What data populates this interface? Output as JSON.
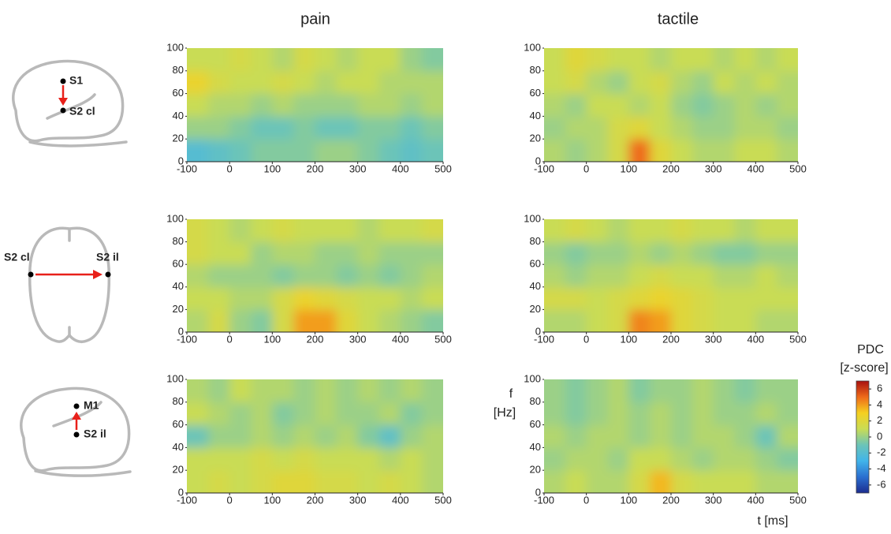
{
  "column_titles": [
    "pain",
    "tactile"
  ],
  "diagrams": [
    {
      "from": "S1",
      "to": "S2 cl"
    },
    {
      "from": "S2 cl",
      "to": "S2 il"
    },
    {
      "from": "S2 il",
      "to": "M1"
    }
  ],
  "axis_labels": {
    "y_lines": [
      "f",
      "[Hz]"
    ],
    "x": "t [ms]"
  },
  "colorbar": {
    "title": "PDC",
    "subtitle": "[z-score]",
    "lim": [
      -7,
      7
    ],
    "ticks": [
      6,
      4,
      2,
      0,
      -2,
      -4,
      -6
    ],
    "colors": [
      "#1c2c8f",
      "#2b6fd0",
      "#41b4ea",
      "#6cc4b8",
      "#c9dc55",
      "#f5d020",
      "#ee6a1a",
      "#a8100e"
    ]
  },
  "chart_data": [
    {
      "type": "heatmap",
      "xlim": [
        -100,
        500
      ],
      "xticks": [
        -100,
        0,
        100,
        200,
        300,
        400,
        500
      ],
      "ylim": [
        0,
        100
      ],
      "yticks": [
        0,
        20,
        40,
        60,
        80,
        100
      ],
      "x_bins": [
        -100,
        -50,
        0,
        50,
        100,
        150,
        200,
        250,
        300,
        350,
        400,
        450,
        500
      ],
      "y_bins": [
        0,
        20,
        40,
        60,
        80,
        100
      ],
      "values": [
        [
          -2,
          -1.5,
          -1,
          -0.5,
          -0.5,
          -0.5,
          0,
          0,
          -0.5,
          -1,
          -1.5,
          -1
        ],
        [
          0,
          0,
          -0.5,
          -1,
          -1,
          -0.5,
          -1,
          -1,
          -0.5,
          -0.5,
          -1,
          -0.5
        ],
        [
          1,
          0.5,
          0.5,
          0,
          0.5,
          0,
          0,
          0,
          0.5,
          0.5,
          0,
          0.5
        ],
        [
          2.5,
          1.5,
          1,
          1,
          1.5,
          1,
          0.5,
          1,
          1,
          0.5,
          0.5,
          0.5
        ],
        [
          1,
          1,
          1.5,
          1,
          0.5,
          1.5,
          1,
          0.5,
          1,
          1,
          0,
          -0.5
        ]
      ]
    },
    {
      "type": "heatmap",
      "xlim": [
        -100,
        500
      ],
      "xticks": [
        -100,
        0,
        100,
        200,
        300,
        400,
        500
      ],
      "ylim": [
        0,
        100
      ],
      "yticks": [
        0,
        20,
        40,
        60,
        80,
        100
      ],
      "x_bins": [
        -100,
        -50,
        0,
        50,
        100,
        150,
        200,
        250,
        300,
        350,
        400,
        450,
        500
      ],
      "y_bins": [
        0,
        20,
        40,
        60,
        80,
        100
      ],
      "values": [
        [
          0.5,
          0,
          0.5,
          1.5,
          5,
          2,
          1,
          0.5,
          0.5,
          1,
          1,
          0.5
        ],
        [
          0,
          0.5,
          0.5,
          1.5,
          2,
          1,
          0.5,
          0,
          0,
          0.5,
          0.5,
          0
        ],
        [
          0.5,
          0,
          1,
          1,
          0.5,
          1,
          0,
          -0.5,
          0,
          0.5,
          0,
          0.5
        ],
        [
          1,
          1.5,
          0.5,
          0,
          1,
          1.5,
          0.5,
          0,
          1,
          0.5,
          1,
          0.5
        ],
        [
          1,
          2,
          1.5,
          1,
          1,
          0.5,
          1,
          1,
          0.5,
          1,
          0.5,
          1
        ]
      ]
    },
    {
      "type": "heatmap",
      "xlim": [
        -100,
        500
      ],
      "xticks": [
        -100,
        0,
        100,
        200,
        300,
        400,
        500
      ],
      "ylim": [
        0,
        100
      ],
      "yticks": [
        0,
        20,
        40,
        60,
        80,
        100
      ],
      "x_bins": [
        -100,
        -50,
        0,
        50,
        100,
        150,
        200,
        250,
        300,
        350,
        400,
        450,
        500
      ],
      "y_bins": [
        0,
        20,
        40,
        60,
        80,
        100
      ],
      "values": [
        [
          0.5,
          1.5,
          0,
          -0.5,
          1.5,
          4,
          4,
          2,
          1,
          0.5,
          0,
          -0.5
        ],
        [
          1,
          1,
          0.5,
          0.5,
          1.5,
          2.5,
          2,
          1.5,
          1,
          1,
          0.5,
          1
        ],
        [
          0.5,
          0,
          0,
          0,
          -0.5,
          0,
          0,
          -0.5,
          0,
          -0.5,
          0,
          0.5
        ],
        [
          1.5,
          1,
          1,
          0,
          0.5,
          0.5,
          0,
          0,
          0.5,
          0,
          0,
          0
        ],
        [
          1.5,
          1,
          0.5,
          1,
          1.5,
          1,
          1,
          1,
          0.5,
          1,
          1,
          1.5
        ]
      ]
    },
    {
      "type": "heatmap",
      "xlim": [
        -100,
        500
      ],
      "xticks": [
        -100,
        0,
        100,
        200,
        300,
        400,
        500
      ],
      "ylim": [
        0,
        100
      ],
      "yticks": [
        0,
        20,
        40,
        60,
        80,
        100
      ],
      "x_bins": [
        -100,
        -50,
        0,
        50,
        100,
        150,
        200,
        250,
        300,
        350,
        400,
        450,
        500
      ],
      "y_bins": [
        0,
        20,
        40,
        60,
        80,
        100
      ],
      "values": [
        [
          0.5,
          0.5,
          1,
          1.5,
          4.5,
          4,
          2,
          1.5,
          1,
          1,
          0.5,
          0.5
        ],
        [
          1.5,
          1.5,
          1,
          1.5,
          2,
          2.5,
          2,
          1.5,
          1,
          1,
          1,
          1
        ],
        [
          0.5,
          0,
          0.5,
          0.5,
          1,
          1.5,
          1,
          1,
          0.5,
          0.5,
          1,
          0.5
        ],
        [
          0,
          -0.5,
          0,
          0,
          0.5,
          0,
          0.5,
          0,
          -0.5,
          -0.5,
          0,
          0
        ],
        [
          1,
          1.5,
          1,
          0.5,
          1,
          1,
          1.5,
          1,
          1,
          0.5,
          1,
          1
        ]
      ]
    },
    {
      "type": "heatmap",
      "xlim": [
        -100,
        500
      ],
      "xticks": [
        -100,
        0,
        100,
        200,
        300,
        400,
        500
      ],
      "ylim": [
        0,
        100
      ],
      "yticks": [
        0,
        20,
        40,
        60,
        80,
        100
      ],
      "x_bins": [
        -100,
        -50,
        0,
        50,
        100,
        150,
        200,
        250,
        300,
        350,
        400,
        450,
        500
      ],
      "y_bins": [
        0,
        20,
        40,
        60,
        80,
        100
      ],
      "values": [
        [
          1,
          1.5,
          1,
          1.5,
          2,
          2,
          1.5,
          1.5,
          1,
          1.5,
          1,
          0.5
        ],
        [
          1,
          1,
          1,
          1.5,
          1,
          1.5,
          1,
          1,
          1,
          0.5,
          1,
          0.5
        ],
        [
          -1,
          0,
          0,
          0.5,
          0,
          0.5,
          0,
          0.5,
          -0.5,
          -1.5,
          0,
          0.5
        ],
        [
          1,
          0.5,
          0,
          0.5,
          -0.5,
          0,
          0.5,
          0,
          0,
          0.5,
          -0.5,
          0
        ],
        [
          0.5,
          0,
          1,
          0.5,
          0.5,
          0,
          0.5,
          0,
          0.5,
          0,
          0.5,
          0
        ]
      ]
    },
    {
      "type": "heatmap",
      "xlim": [
        -100,
        500
      ],
      "xticks": [
        -100,
        0,
        100,
        200,
        300,
        400,
        500
      ],
      "ylim": [
        0,
        100
      ],
      "yticks": [
        0,
        20,
        40,
        60,
        80,
        100
      ],
      "x_bins": [
        -100,
        -50,
        0,
        50,
        100,
        150,
        200,
        250,
        300,
        350,
        400,
        450,
        500
      ],
      "y_bins": [
        0,
        20,
        40,
        60,
        80,
        100
      ],
      "values": [
        [
          0.5,
          1,
          0.5,
          0.5,
          1.5,
          3.5,
          1.5,
          1,
          1,
          1,
          0.5,
          0.5
        ],
        [
          0,
          0.5,
          0.5,
          0,
          1,
          1,
          0.5,
          0,
          0.5,
          0.5,
          0,
          -0.5
        ],
        [
          0.5,
          0,
          0.5,
          0.5,
          0,
          0.5,
          0,
          0.5,
          0.5,
          0,
          -1,
          0.5
        ],
        [
          0,
          -0.5,
          0,
          0.5,
          0,
          0.5,
          0,
          0.5,
          0,
          0,
          0.5,
          0
        ],
        [
          0,
          -0.5,
          0,
          0.5,
          -0.5,
          0,
          0,
          0.5,
          0,
          -0.5,
          0,
          0
        ]
      ]
    }
  ]
}
